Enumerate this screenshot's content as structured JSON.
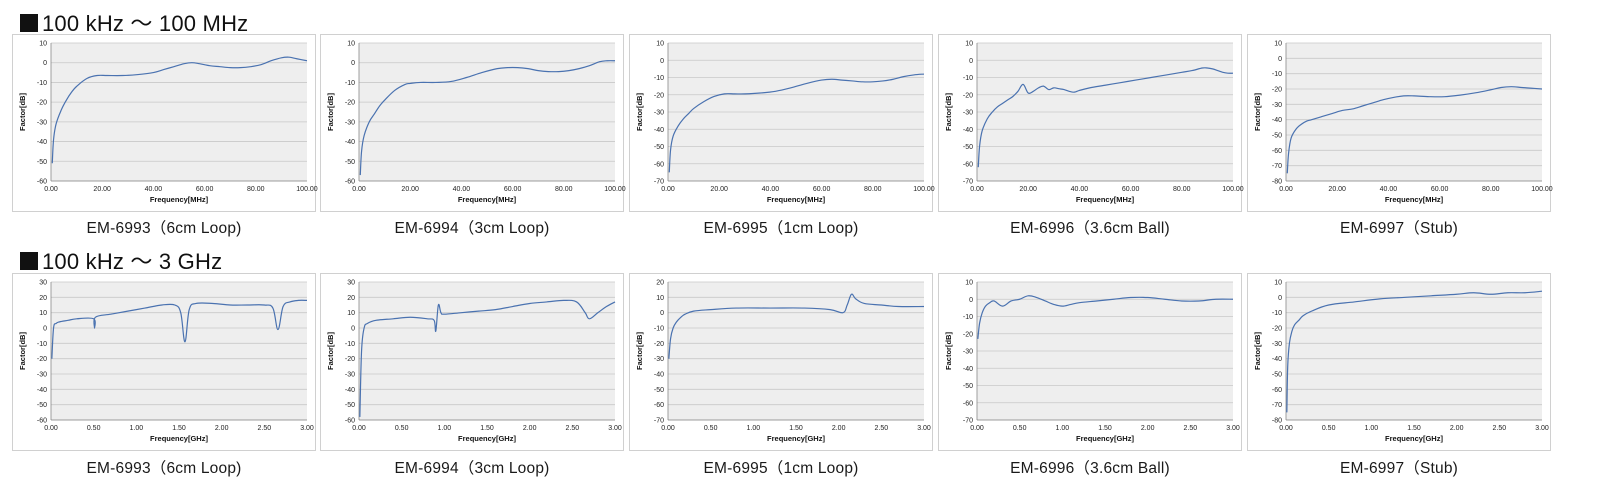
{
  "sections": [
    {
      "title": "100 kHz ～ 100 MHz"
    },
    {
      "title": "100 kHz ～ 3 GHz"
    }
  ],
  "colors": {
    "series": "#4a72b0",
    "plot_bg": "#eeeeee",
    "grid": "#c8c8c8",
    "border": "#d0d0d0"
  },
  "chart_data": [
    {
      "type": "line",
      "section": 0,
      "caption": "EM-6993（6cm Loop)",
      "xlabel": "Frequency[MHz]",
      "ylabel": "Factor[dB]",
      "xlim": [
        0,
        100
      ],
      "xticks": [
        0,
        20,
        40,
        60,
        80,
        100
      ],
      "xtick_labels": [
        "0.00",
        "20.00",
        "40.00",
        "60.00",
        "80.00",
        "100.00"
      ],
      "ylim": [
        -60,
        10
      ],
      "yticks": [
        10,
        0,
        -10,
        -20,
        -30,
        -40,
        -50,
        -60
      ],
      "grid": true,
      "series": [
        {
          "x": [
            0.5,
            1,
            2,
            4,
            6,
            8,
            10,
            14,
            18,
            22,
            28,
            34,
            40,
            44,
            48,
            52,
            55,
            58,
            62,
            66,
            70,
            74,
            78,
            82,
            86,
            90,
            93,
            96,
            100
          ],
          "y": [
            -51,
            -39,
            -31,
            -24,
            -19,
            -15,
            -12,
            -8,
            -6.5,
            -6.5,
            -6.5,
            -6,
            -5,
            -3.5,
            -2,
            -0.5,
            0,
            -0.5,
            -1.5,
            -2,
            -2.5,
            -2.5,
            -2,
            -1,
            1,
            2.5,
            2.8,
            2,
            1
          ]
        }
      ]
    },
    {
      "type": "line",
      "section": 0,
      "caption": "EM-6994（3cm Loop)",
      "xlabel": "Frequency[MHz]",
      "ylabel": "Factor[dB]",
      "xlim": [
        0,
        100
      ],
      "xticks": [
        0,
        20,
        40,
        60,
        80,
        100
      ],
      "xtick_labels": [
        "0.00",
        "20.00",
        "40.00",
        "60.00",
        "80.00",
        "100.00"
      ],
      "ylim": [
        -60,
        10
      ],
      "yticks": [
        10,
        0,
        -10,
        -20,
        -30,
        -40,
        -50,
        -60
      ],
      "grid": true,
      "series": [
        {
          "x": [
            0.5,
            1,
            2,
            4,
            6,
            8,
            10,
            14,
            18,
            20,
            24,
            30,
            36,
            42,
            48,
            54,
            58,
            62,
            66,
            70,
            74,
            78,
            82,
            86,
            90,
            94,
            97,
            100
          ],
          "y": [
            -57,
            -45,
            -37,
            -30,
            -26,
            -22,
            -19,
            -14,
            -11,
            -10.5,
            -10,
            -10,
            -9.5,
            -7.5,
            -5,
            -3,
            -2.5,
            -2.5,
            -3,
            -4,
            -4.5,
            -4.5,
            -4,
            -3,
            -1.5,
            0.5,
            1,
            1
          ]
        }
      ]
    },
    {
      "type": "line",
      "section": 0,
      "caption": "EM-6995（1cm Loop)",
      "xlabel": "Frequency[MHz]",
      "ylabel": "Factor[dB]",
      "xlim": [
        0,
        100
      ],
      "xticks": [
        0,
        20,
        40,
        60,
        80,
        100
      ],
      "xtick_labels": [
        "0.00",
        "20.00",
        "40.00",
        "60.00",
        "80.00",
        "100.00"
      ],
      "ylim": [
        -70,
        10
      ],
      "yticks": [
        10,
        0,
        -10,
        -20,
        -30,
        -40,
        -50,
        -60,
        -70
      ],
      "grid": true,
      "series": [
        {
          "x": [
            0.5,
            1,
            2,
            4,
            6,
            8,
            10,
            14,
            18,
            22,
            26,
            30,
            36,
            42,
            48,
            54,
            60,
            64,
            68,
            72,
            76,
            80,
            84,
            88,
            92,
            96,
            100
          ],
          "y": [
            -65,
            -52,
            -44,
            -38,
            -34,
            -31,
            -28,
            -24,
            -21,
            -19.5,
            -19.5,
            -19.5,
            -19,
            -18,
            -16,
            -13.5,
            -11.5,
            -11,
            -11.5,
            -12,
            -12.5,
            -12.5,
            -12,
            -11,
            -9.5,
            -8.5,
            -8
          ]
        }
      ]
    },
    {
      "type": "line",
      "section": 0,
      "caption": "EM-6996（3.6cm Ball)",
      "xlabel": "Frequency[MHz]",
      "ylabel": "Factor[dB]",
      "xlim": [
        0,
        100
      ],
      "xticks": [
        0,
        20,
        40,
        60,
        80,
        100
      ],
      "xtick_labels": [
        "0.00",
        "20.00",
        "40.00",
        "60.00",
        "80.00",
        "100.00"
      ],
      "ylim": [
        -70,
        10
      ],
      "yticks": [
        10,
        0,
        -10,
        -20,
        -30,
        -40,
        -50,
        -60,
        -70
      ],
      "grid": true,
      "series": [
        {
          "x": [
            0.5,
            1,
            2,
            4,
            6,
            8,
            10,
            12,
            14,
            16,
            18,
            20,
            22,
            24,
            26,
            28,
            30,
            32,
            34,
            36,
            38,
            40,
            44,
            50,
            56,
            62,
            68,
            74,
            80,
            84,
            88,
            90,
            92,
            94,
            96,
            98,
            100
          ],
          "y": [
            -62,
            -50,
            -41,
            -34,
            -30,
            -27,
            -25,
            -23,
            -21,
            -18,
            -14,
            -19,
            -18,
            -16,
            -15,
            -17,
            -16,
            -16.5,
            -17,
            -18,
            -18.5,
            -17.5,
            -16,
            -14.5,
            -13,
            -11.5,
            -10,
            -8.5,
            -7,
            -6,
            -4.5,
            -4.5,
            -5,
            -6,
            -7,
            -7.5,
            -7.5
          ]
        }
      ]
    },
    {
      "type": "line",
      "section": 0,
      "caption": "EM-6997（Stub)",
      "xlabel": "Frequency[MHz]",
      "ylabel": "Factor[dB]",
      "xlim": [
        0,
        100
      ],
      "xticks": [
        0,
        20,
        40,
        60,
        80,
        100
      ],
      "xtick_labels": [
        "0.00",
        "20.00",
        "40.00",
        "60.00",
        "80.00",
        "100.00"
      ],
      "ylim": [
        -80,
        10
      ],
      "yticks": [
        10,
        0,
        -10,
        -20,
        -30,
        -40,
        -50,
        -60,
        -70,
        -80
      ],
      "grid": true,
      "series": [
        {
          "x": [
            0.5,
            1,
            2,
            4,
            6,
            8,
            10,
            14,
            18,
            22,
            26,
            30,
            34,
            38,
            42,
            46,
            50,
            56,
            62,
            68,
            74,
            80,
            84,
            88,
            92,
            96,
            100
          ],
          "y": [
            -75,
            -62,
            -52,
            -46,
            -43,
            -41,
            -40,
            -38,
            -36,
            -34,
            -33,
            -31,
            -29,
            -27,
            -25.5,
            -24.5,
            -24.5,
            -25,
            -25,
            -24,
            -22.5,
            -20.5,
            -19,
            -18.5,
            -19,
            -19.5,
            -20
          ]
        }
      ]
    },
    {
      "type": "line",
      "section": 1,
      "caption": "EM-6993（6cm Loop)",
      "xlabel": "Frequency[GHz]",
      "ylabel": "Factor[dB]",
      "xlim": [
        0,
        3
      ],
      "xticks": [
        0,
        0.5,
        1,
        1.5,
        2,
        2.5,
        3
      ],
      "xtick_labels": [
        "0.00",
        "0.50",
        "1.00",
        "1.50",
        "2.00",
        "2.50",
        "3.00"
      ],
      "ylim": [
        -60,
        30
      ],
      "yticks": [
        30,
        20,
        10,
        0,
        -10,
        -20,
        -30,
        -40,
        -50,
        -60
      ],
      "grid": true,
      "series": [
        {
          "x": [
            0.01,
            0.03,
            0.06,
            0.1,
            0.2,
            0.3,
            0.5,
            0.51,
            0.52,
            0.7,
            0.9,
            1.1,
            1.3,
            1.45,
            1.52,
            1.57,
            1.62,
            1.7,
            1.9,
            2.1,
            2.3,
            2.5,
            2.6,
            2.66,
            2.72,
            2.8,
            2.9,
            3.0
          ],
          "y": [
            -20,
            0,
            3,
            4,
            5,
            6,
            6,
            0,
            7,
            9,
            11,
            13,
            15,
            15,
            10,
            -9,
            12,
            16,
            16,
            15,
            15,
            15,
            13,
            -1,
            14,
            17,
            18,
            18
          ]
        }
      ]
    },
    {
      "type": "line",
      "section": 1,
      "caption": "EM-6994（3cm Loop)",
      "xlabel": "Frequency[GHz]",
      "ylabel": "Factor[dB]",
      "xlim": [
        0,
        3
      ],
      "xticks": [
        0,
        0.5,
        1,
        1.5,
        2,
        2.5,
        3
      ],
      "xtick_labels": [
        "0.00",
        "0.50",
        "1.00",
        "1.50",
        "2.00",
        "2.50",
        "3.00"
      ],
      "ylim": [
        -60,
        30
      ],
      "yticks": [
        30,
        20,
        10,
        0,
        -10,
        -20,
        -30,
        -40,
        -50,
        -60
      ],
      "grid": true,
      "series": [
        {
          "x": [
            0.01,
            0.03,
            0.06,
            0.1,
            0.2,
            0.4,
            0.6,
            0.8,
            0.88,
            0.9,
            0.93,
            0.96,
            1.0,
            1.2,
            1.4,
            1.6,
            1.8,
            2.0,
            2.2,
            2.4,
            2.55,
            2.65,
            2.7,
            2.8,
            2.9,
            3.0
          ],
          "y": [
            -58,
            -15,
            0,
            3,
            5,
            6,
            7,
            6,
            5,
            -2,
            15,
            10,
            9,
            10,
            11,
            12,
            14,
            16,
            17,
            18,
            17,
            10,
            6,
            10,
            14,
            17
          ]
        }
      ]
    },
    {
      "type": "line",
      "section": 1,
      "caption": "EM-6995（1cm Loop)",
      "xlabel": "Frequency[GHz]",
      "ylabel": "Factor[dB]",
      "xlim": [
        0,
        3
      ],
      "xticks": [
        0,
        0.5,
        1,
        1.5,
        2,
        2.5,
        3
      ],
      "xtick_labels": [
        "0.00",
        "0.50",
        "1.00",
        "1.50",
        "2.00",
        "2.50",
        "3.00"
      ],
      "ylim": [
        -70,
        20
      ],
      "yticks": [
        20,
        10,
        0,
        -10,
        -20,
        -30,
        -40,
        -50,
        -60,
        -70
      ],
      "grid": true,
      "series": [
        {
          "x": [
            0.01,
            0.03,
            0.06,
            0.1,
            0.15,
            0.2,
            0.3,
            0.5,
            0.8,
            1.2,
            1.6,
            1.9,
            2.05,
            2.1,
            2.15,
            2.2,
            2.3,
            2.5,
            2.7,
            3.0
          ],
          "y": [
            -30,
            -17,
            -10,
            -6,
            -3,
            -1,
            1,
            2,
            3,
            3,
            3,
            2,
            0,
            5,
            12,
            9,
            6,
            5,
            4,
            4
          ]
        }
      ]
    },
    {
      "type": "line",
      "section": 1,
      "caption": "EM-6996（3.6cm Ball)",
      "xlabel": "Frequency[GHz]",
      "ylabel": "Factor[dB]",
      "xlim": [
        0,
        3
      ],
      "xticks": [
        0,
        0.5,
        1,
        1.5,
        2,
        2.5,
        3
      ],
      "xtick_labels": [
        "0.00",
        "0.50",
        "1.00",
        "1.50",
        "2.00",
        "2.50",
        "3.00"
      ],
      "ylim": [
        -70,
        10
      ],
      "yticks": [
        10,
        0,
        -10,
        -20,
        -30,
        -40,
        -50,
        -60,
        -70
      ],
      "grid": true,
      "series": [
        {
          "x": [
            0.01,
            0.03,
            0.06,
            0.1,
            0.15,
            0.2,
            0.3,
            0.4,
            0.5,
            0.6,
            0.7,
            0.8,
            0.9,
            1.0,
            1.1,
            1.2,
            1.4,
            1.6,
            1.8,
            2.0,
            2.2,
            2.4,
            2.6,
            2.8,
            3.0
          ],
          "y": [
            -23,
            -14,
            -8,
            -4,
            -2,
            -1,
            -4,
            -1,
            0,
            2,
            1,
            -1,
            -3,
            -4,
            -3,
            -2,
            -1,
            0,
            1,
            1,
            0,
            -1,
            -1,
            0,
            0
          ]
        }
      ]
    },
    {
      "type": "line",
      "section": 1,
      "caption": "EM-6997（Stub)",
      "xlabel": "Frequency[GHz]",
      "ylabel": "Factor[dB]",
      "xlim": [
        0,
        3
      ],
      "xticks": [
        0,
        0.5,
        1,
        1.5,
        2,
        2.5,
        3
      ],
      "xtick_labels": [
        "0.00",
        "0.50",
        "1.00",
        "1.50",
        "2.00",
        "2.50",
        "3.00"
      ],
      "ylim": [
        -80,
        10
      ],
      "yticks": [
        10,
        0,
        -10,
        -20,
        -30,
        -40,
        -50,
        -60,
        -70,
        -80
      ],
      "grid": true,
      "series": [
        {
          "x": [
            0.01,
            0.02,
            0.04,
            0.07,
            0.1,
            0.15,
            0.2,
            0.3,
            0.5,
            0.8,
            1.1,
            1.4,
            1.7,
            2.0,
            2.2,
            2.4,
            2.6,
            2.8,
            3.0
          ],
          "y": [
            -75,
            -45,
            -30,
            -22,
            -18,
            -15,
            -12,
            -9,
            -5,
            -3,
            -1,
            0,
            1,
            2,
            3,
            2,
            3,
            3,
            4
          ]
        }
      ]
    }
  ]
}
